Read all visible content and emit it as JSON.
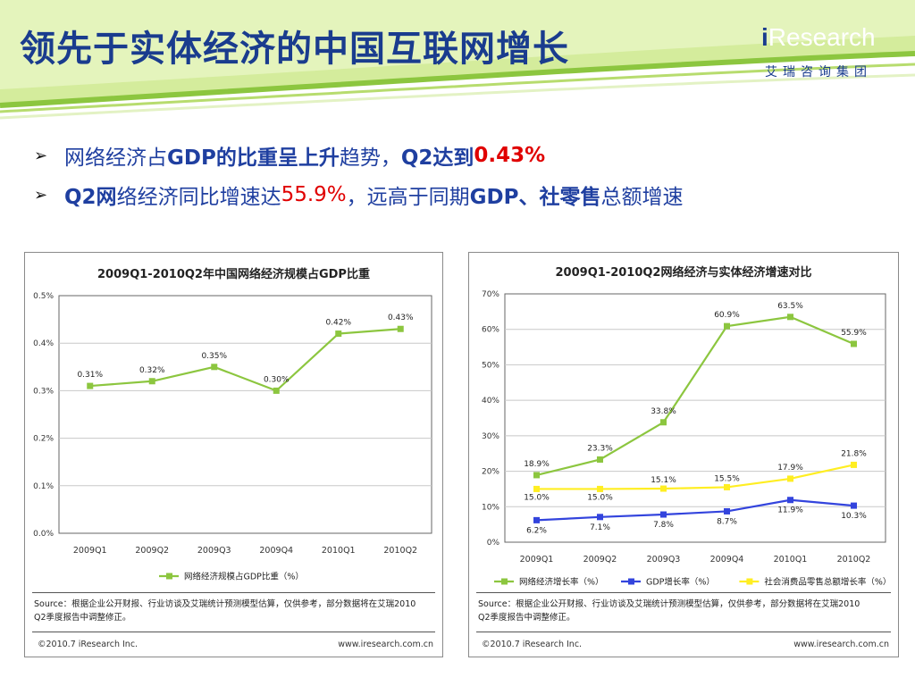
{
  "slide": {
    "title": "领先于实体经济的中国互联网增长",
    "logo_text_i": "i",
    "logo_text_rest": "Research",
    "logo_cn": "艾瑞咨询集团",
    "bullet1_a": "网络经济占",
    "bullet1_b": "GDP的比重呈上升",
    "bullet1_c": "趋势，",
    "bullet1_d": "Q2达到",
    "bullet1_e": "0.43%",
    "bullet2_a": "Q2网",
    "bullet2_b": "络经济同比增速达",
    "bullet2_c": "55.9%",
    "bullet2_d": "，远高于同期",
    "bullet2_e": "GDP、社零售",
    "bullet2_f": "总额增速",
    "colors": {
      "title": "#1a3c8e",
      "accent_green": "#8cc63f",
      "red": "#e00000"
    }
  },
  "panel1": {
    "source": "Source：根据企业公开财报、行业访谈及艾瑞统计预测模型估算，仅供参考，部分数据将在艾瑞2010",
    "source2": "Q2季度报告中调整修正。",
    "footer_left": "©2010.7 iResearch Inc.",
    "footer_right": "www.iresearch.com.cn"
  },
  "panel2": {
    "source": "Source：根据企业公开财报、行业访谈及艾瑞统计预测模型估算，仅供参考，部分数据将在艾瑞2010",
    "source2": "Q2季度报告中调整修正。",
    "footer_left": "©2010.7 iResearch Inc.",
    "footer_right": "www.iresearch.com.cn"
  },
  "chart_data": [
    {
      "type": "line",
      "title": "2009Q1-2010Q2年中国网络经济规模占GDP比重",
      "categories": [
        "2009Q1",
        "2009Q2",
        "2009Q3",
        "2009Q4",
        "2010Q1",
        "2010Q2"
      ],
      "ylim": [
        0,
        0.5
      ],
      "yticks": [
        "0.0%",
        "0.1%",
        "0.2%",
        "0.3%",
        "0.4%",
        "0.5%"
      ],
      "series": [
        {
          "name": "网络经济规模占GDP比重（%）",
          "color": "#8cc63f",
          "values": [
            0.31,
            0.32,
            0.35,
            0.3,
            0.42,
            0.43
          ],
          "labels": [
            "0.31%",
            "0.32%",
            "0.35%",
            "0.30%",
            "0.42%",
            "0.43%"
          ]
        }
      ],
      "legend": "bottom",
      "grid": true
    },
    {
      "type": "line",
      "title": "2009Q1-2010Q2网络经济与实体经济增速对比",
      "categories": [
        "2009Q1",
        "2009Q2",
        "2009Q3",
        "2009Q4",
        "2010Q1",
        "2010Q2"
      ],
      "ylim": [
        0,
        70
      ],
      "yticks": [
        "0%",
        "10%",
        "20%",
        "30%",
        "40%",
        "50%",
        "60%",
        "70%"
      ],
      "series": [
        {
          "name": "网络经济增长率（%）",
          "color": "#8cc63f",
          "values": [
            18.9,
            23.3,
            33.8,
            60.9,
            63.5,
            55.9
          ],
          "labels": [
            "18.9%",
            "23.3%",
            "33.8%",
            "60.9%",
            "63.5%",
            "55.9%"
          ]
        },
        {
          "name": "GDP增长率（%）",
          "color": "#3344dd",
          "values": [
            6.2,
            7.1,
            7.8,
            8.7,
            11.9,
            10.3
          ],
          "labels": [
            "6.2%",
            "7.1%",
            "7.8%",
            "8.7%",
            "11.9%",
            "10.3%"
          ]
        },
        {
          "name": "社会消费品零售总额增长率（%）",
          "color": "#ffee22",
          "values": [
            15.0,
            15.0,
            15.1,
            15.5,
            17.9,
            21.8
          ],
          "labels": [
            "15.0%",
            "15.0%",
            "15.1%",
            "15.5%",
            "17.9%",
            "21.8%"
          ]
        }
      ],
      "legend": "bottom",
      "grid": true
    }
  ]
}
